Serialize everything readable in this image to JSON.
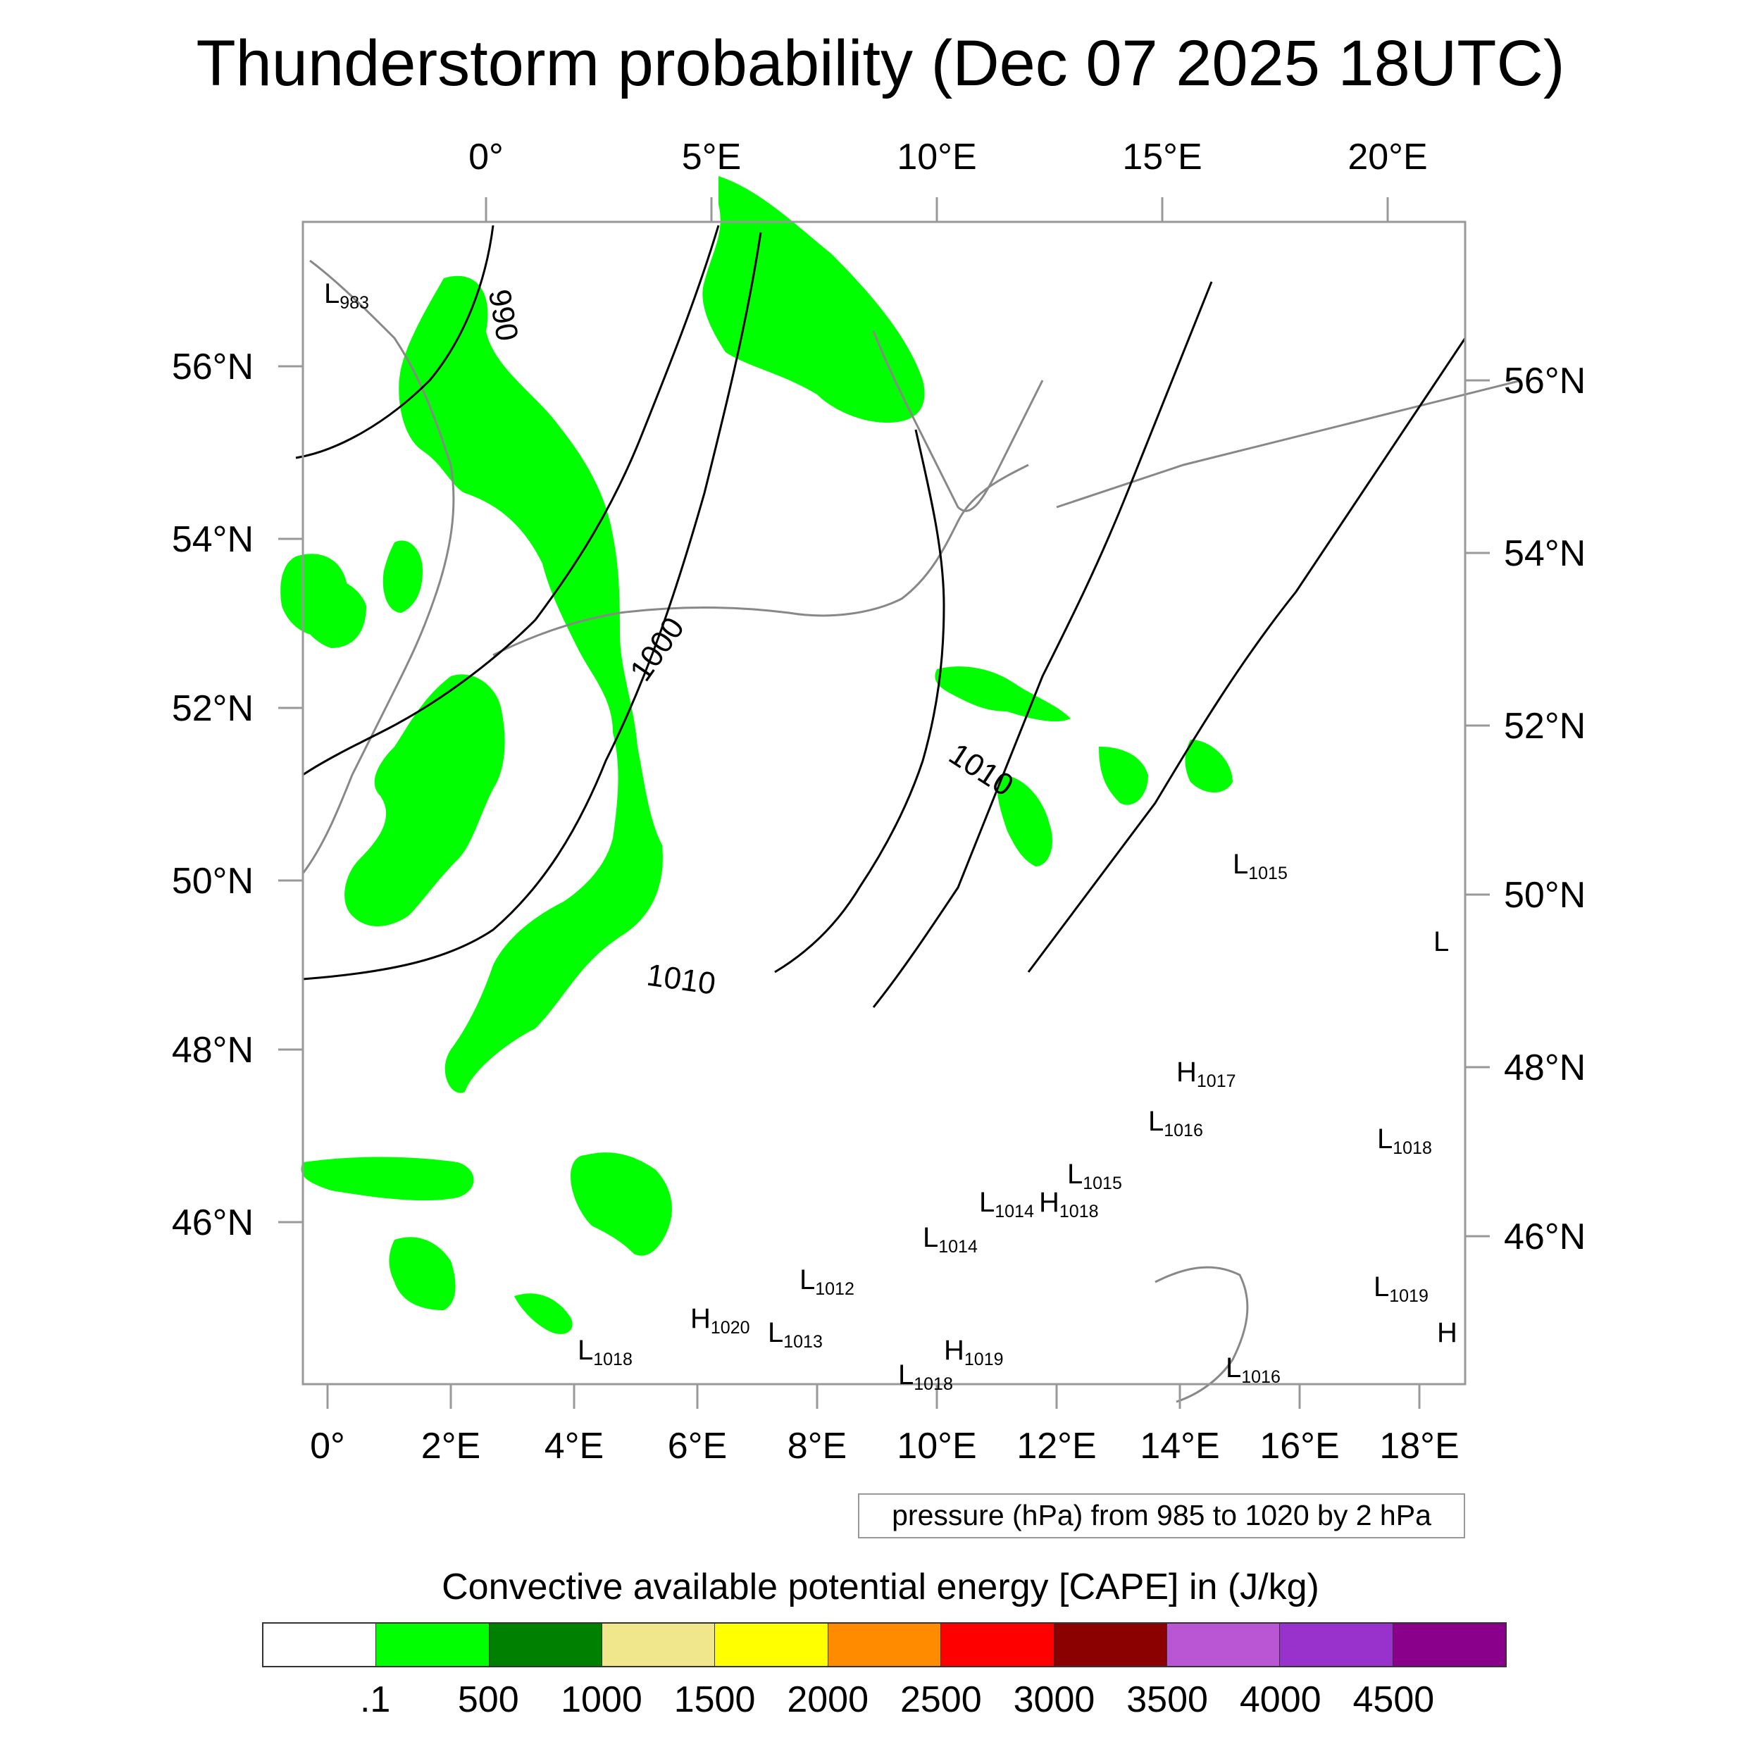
{
  "title": "Thunderstorm probability (Dec 07 2025 18UTC)",
  "map": {
    "top_lon_labels": [
      "0°",
      "5°E",
      "10°E",
      "15°E",
      "20°E"
    ],
    "bottom_lon_labels": [
      "0°",
      "2°E",
      "4°E",
      "6°E",
      "8°E",
      "10°E",
      "12°E",
      "14°E",
      "16°E",
      "18°E"
    ],
    "left_lat_labels": [
      "56°N",
      "54°N",
      "52°N",
      "50°N",
      "48°N",
      "46°N"
    ],
    "right_lat_labels": [
      "56°N",
      "54°N",
      "52°N",
      "50°N",
      "48°N",
      "46°N"
    ],
    "contour_labels": [
      "990",
      "1000",
      "1010",
      "1010"
    ],
    "pressure_centers": [
      {
        "type": "L",
        "value": "983"
      },
      {
        "type": "L",
        "value": "1015"
      },
      {
        "type": "L",
        "value": ""
      },
      {
        "type": "H",
        "value": "1017"
      },
      {
        "type": "L",
        "value": "1016"
      },
      {
        "type": "L",
        "value": "1018"
      },
      {
        "type": "L",
        "value": "1015"
      },
      {
        "type": "L",
        "value": "1014"
      },
      {
        "type": "H",
        "value": "1018"
      },
      {
        "type": "L",
        "value": "1014"
      },
      {
        "type": "L",
        "value": "1012"
      },
      {
        "type": "H",
        "value": "1020"
      },
      {
        "type": "L",
        "value": "1013"
      },
      {
        "type": "L",
        "value": "1018"
      },
      {
        "type": "H",
        "value": "1019"
      },
      {
        "type": "L",
        "value": "1018"
      },
      {
        "type": "L",
        "value": "1019"
      },
      {
        "type": "L",
        "value": "1016"
      },
      {
        "type": "H",
        "value": ""
      }
    ],
    "colors": {
      "cape_fill": "#00ff00",
      "coast": "#888888",
      "isobar": "#000000",
      "grid": "#999999"
    }
  },
  "caption": "pressure (hPa) from 985 to 1020 by 2 hPa",
  "colorbar": {
    "title": "Convective available potential energy [CAPE] in (J/kg)",
    "colors": [
      "#ffffff",
      "#00ff00",
      "#008000",
      "#f0e68c",
      "#ffff00",
      "#ff8c00",
      "#ff0000",
      "#8b0000",
      "#ba55d3",
      "#9932cc",
      "#8b008b"
    ],
    "labels": [
      ".1",
      "500",
      "1000",
      "1500",
      "2000",
      "2500",
      "3000",
      "3500",
      "4000",
      "4500"
    ]
  }
}
